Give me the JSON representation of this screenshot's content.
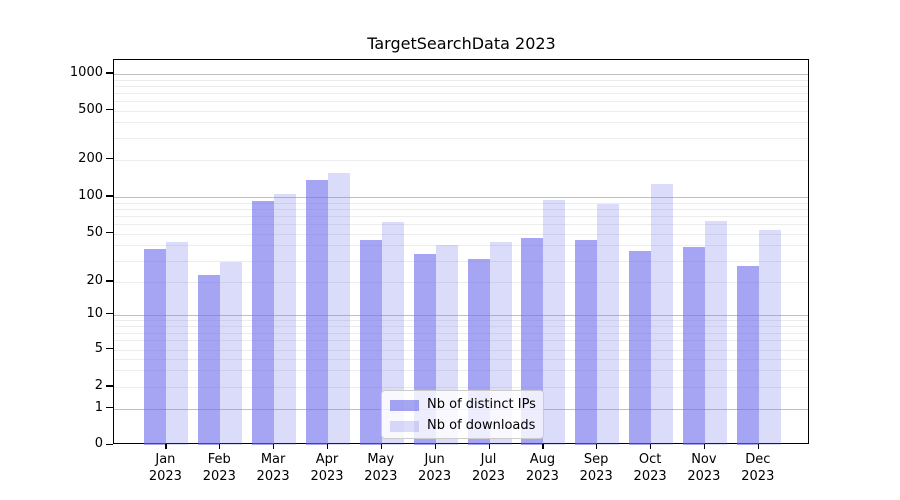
{
  "chart_data": {
    "type": "bar",
    "title": "TargetSearchData 2023",
    "year_label": "2023",
    "categories": [
      "Jan",
      "Feb",
      "Mar",
      "Apr",
      "May",
      "Jun",
      "Jul",
      "Aug",
      "Sep",
      "Oct",
      "Nov",
      "Dec"
    ],
    "series": [
      {
        "name": "Nb of distinct IPs",
        "color": "rgba(110,110,235,0.62)",
        "values": [
          37,
          23,
          93,
          136,
          44,
          34,
          31,
          46,
          44,
          36,
          39,
          27
        ]
      },
      {
        "name": "Nb of downloads",
        "color": "rgba(110,110,235,0.25)",
        "values": [
          43,
          29,
          105,
          157,
          62,
          40,
          43,
          94,
          88,
          128,
          64,
          53
        ]
      }
    ],
    "yticks": [
      0,
      1,
      2,
      5,
      10,
      20,
      50,
      100,
      200,
      500,
      1000
    ],
    "ylim": [
      0,
      1250
    ],
    "xlabel": "",
    "ylabel": "",
    "y_scale": "log-like with 0 at baseline",
    "grid": true,
    "legend_position": "lower center",
    "grid_major_color": "#c0c0c0",
    "grid_minor_color": "#ececec"
  }
}
